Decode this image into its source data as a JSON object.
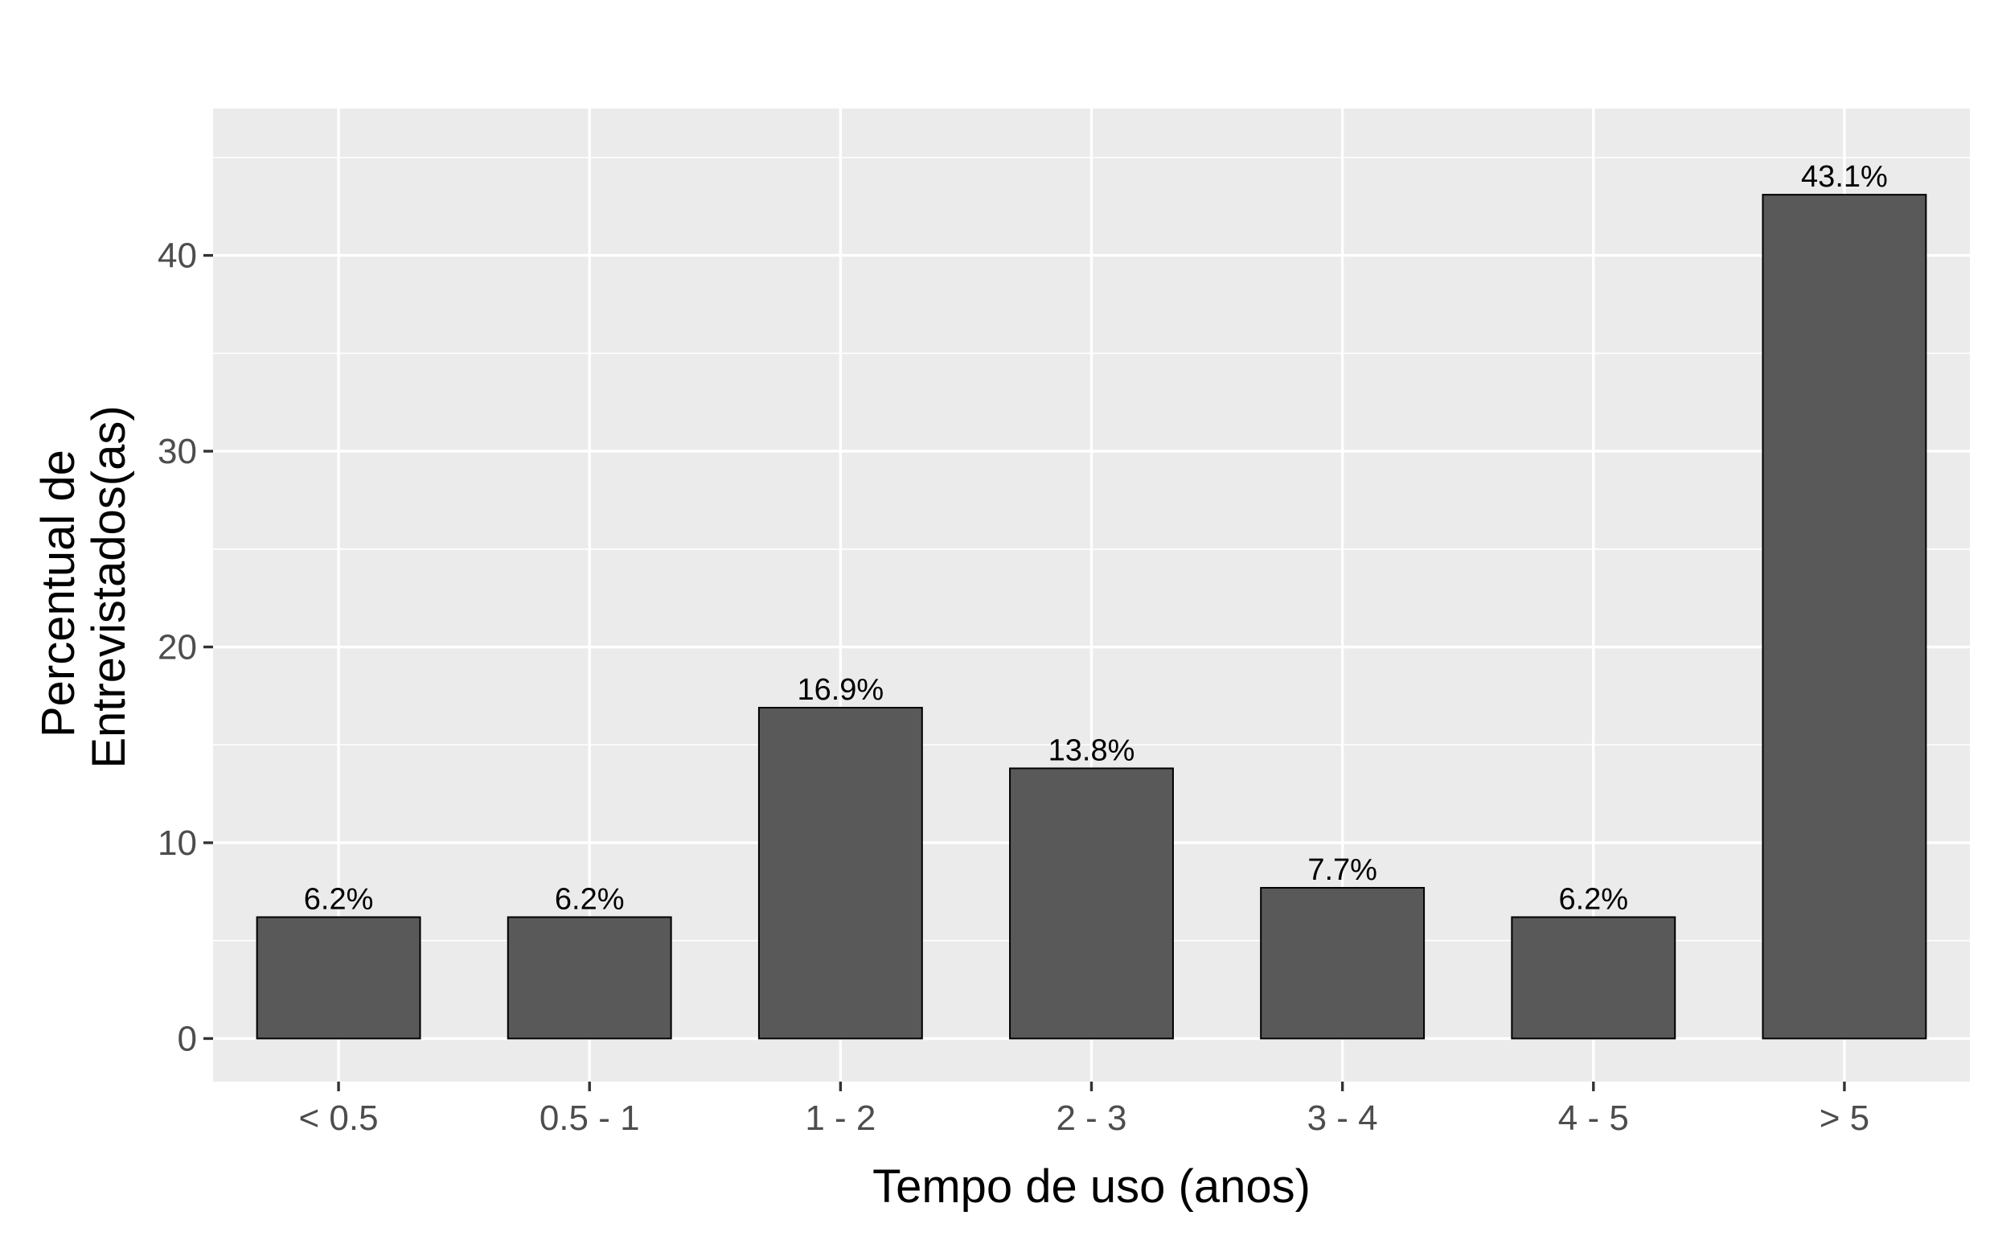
{
  "chart_data": {
    "type": "bar",
    "title": "",
    "xlabel": "Tempo de uso (anos)",
    "ylabel_lines": [
      "Percentual de",
      "Entrevistados(as)"
    ],
    "categories": [
      "< 0.5",
      "0.5 - 1",
      "1 - 2",
      "2 - 3",
      "3 - 4",
      "4 - 5",
      "> 5"
    ],
    "values": [
      6.2,
      6.2,
      16.9,
      13.8,
      7.7,
      6.2,
      43.1
    ],
    "data_labels": [
      "6.2%",
      "6.2%",
      "16.9%",
      "13.8%",
      "7.7%",
      "6.2%",
      "43.1%"
    ],
    "ylim": [
      -2.2,
      47.5
    ],
    "yticks": [
      0,
      10,
      20,
      30,
      40
    ],
    "ytick_labels": [
      "0",
      "10",
      "20",
      "30",
      "40"
    ],
    "grid": true,
    "legend": "none",
    "colors": {
      "panel": "#ebebeb",
      "grid": "#ffffff",
      "bar_fill": "#595959",
      "bar_stroke": "#000000",
      "tick": "#333333",
      "tick_text": "#4d4d4d"
    }
  }
}
